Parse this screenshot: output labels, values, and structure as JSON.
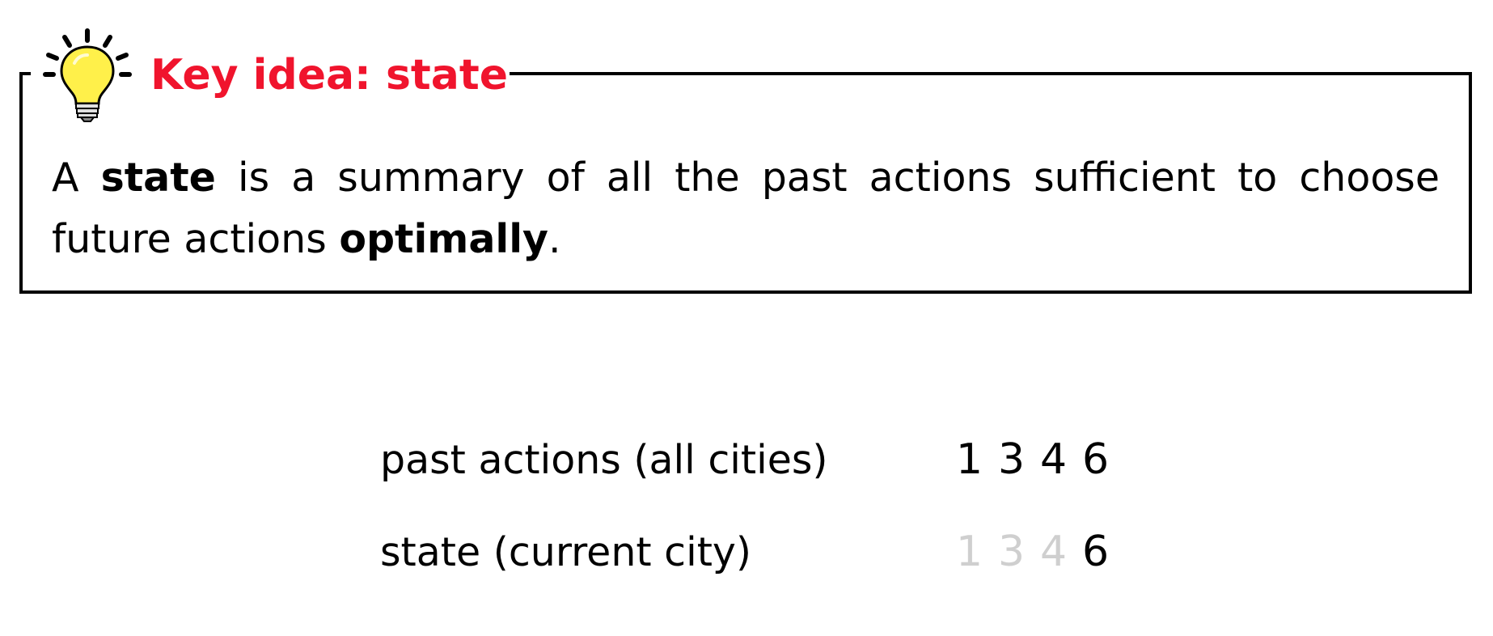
{
  "key_idea": {
    "title": "Key idea: state",
    "icon": "lightbulb-icon",
    "title_color": "#f0142d",
    "text": {
      "part1": "A ",
      "bold1": "state",
      "part2": " is a summary of all the past actions sufficient to choose future actions ",
      "bold2": "optimally",
      "part3": "."
    }
  },
  "rows": [
    {
      "label": "past actions (all cities)",
      "sequence": [
        "1",
        "3",
        "4",
        "6"
      ],
      "faded": [
        false,
        false,
        false,
        false
      ]
    },
    {
      "label": "state (current city)",
      "sequence": [
        "1",
        "3",
        "4",
        "6"
      ],
      "faded": [
        true,
        true,
        true,
        false
      ]
    }
  ]
}
